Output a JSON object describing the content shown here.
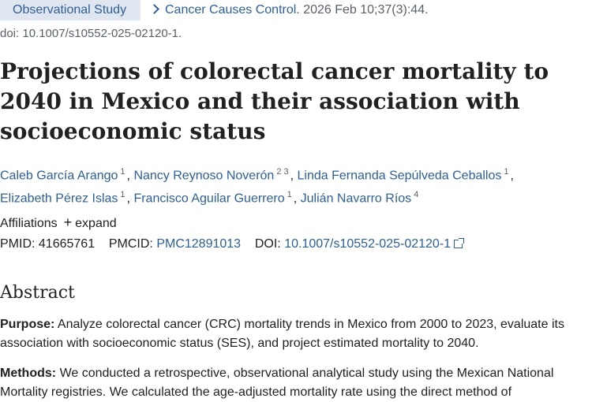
{
  "header": {
    "badge": "Observational Study",
    "journal_name": "Cancer Causes Control.",
    "journal_date": "2026 Feb 10;37(3):44.",
    "doi_line": "doi: 10.1007/s10552-025-02120-1."
  },
  "title": "Projections of colorectal cancer mortality to 2040 in Mexico and their association with socioeconomic status",
  "authors": [
    {
      "name": "Caleb García Arango",
      "sup": "1",
      "sep": ","
    },
    {
      "name": "Nancy Reynoso Noverón",
      "sup": "2 3",
      "sep": ","
    },
    {
      "name": "Linda Fernanda Sepúlveda Ceballos",
      "sup": "1",
      "sep": ","
    },
    {
      "name": "Elizabeth Pérez Islas",
      "sup": "1",
      "sep": ","
    },
    {
      "name": "Francisco Aguilar Guerrero",
      "sup": "1",
      "sep": ","
    },
    {
      "name": "Julián Navarro Ríos",
      "sup": "4",
      "sep": ""
    }
  ],
  "affiliations": {
    "label": "Affiliations",
    "expand": "expand"
  },
  "ids": {
    "pmid_label": "PMID:",
    "pmid": "41665761",
    "pmcid_label": "PMCID:",
    "pmcid": "PMC12891013",
    "doi_label": "DOI:",
    "doi": "10.1007/s10552-025-02120-1"
  },
  "abstract": {
    "heading": "Abstract",
    "purpose_label": "Purpose:",
    "purpose_text": "Analyze colorectal cancer (CRC) mortality trends in Mexico from 2000 to 2023, evaluate its association with socioeconomic status (SES), and project estimated mortality to 2040.",
    "methods_label": "Methods:",
    "methods_text": "We conducted a retrospective, observational analytical study using the Mexican National Mortality registries. We calculated the age-adjusted mortality rate using the direct method of"
  }
}
